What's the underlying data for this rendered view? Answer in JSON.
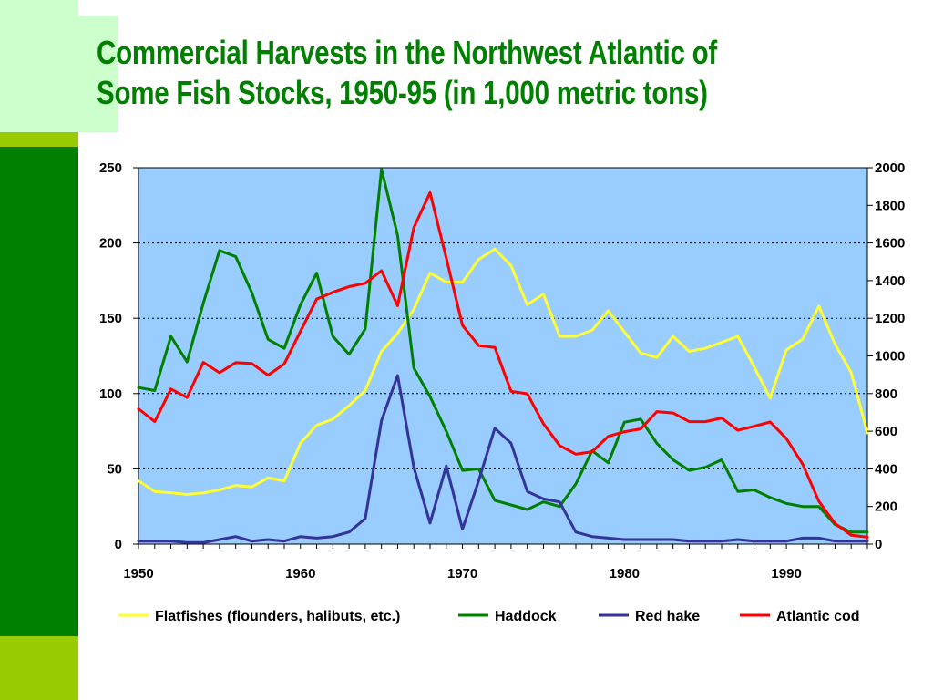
{
  "slide": {
    "title_line1": "Commercial Harvests in the Northwest Atlantic of",
    "title_line2": "Some Fish Stocks, 1950-95 (in 1,000 metric tons)",
    "colors": {
      "light_green": "#ccffcc",
      "lime": "#99cc00",
      "dark_green": "#008000"
    }
  },
  "chart_data": {
    "type": "line",
    "title": "Commercial Harvests in the Northwest Atlantic of Some Fish Stocks, 1950-95 (in 1,000 metric tons)",
    "xlabel": "",
    "ylabel": "",
    "xlim": [
      1950,
      1995
    ],
    "x_ticks": [
      "1950",
      "1960",
      "1970",
      "1980",
      "1990"
    ],
    "y_left": {
      "lim": [
        0,
        250
      ],
      "ticks": [
        "0",
        "50",
        "100",
        "150",
        "200",
        "250"
      ]
    },
    "y_right": {
      "lim": [
        0,
        2000
      ],
      "ticks": [
        "0",
        "200",
        "400",
        "600",
        "800",
        "1000",
        "1200",
        "1400",
        "1600",
        "1800",
        "2000"
      ]
    },
    "grid": "horizontal dotted",
    "plot_background": "#99ccff",
    "legend": "bottom",
    "x": [
      1950,
      1951,
      1952,
      1953,
      1954,
      1955,
      1956,
      1957,
      1958,
      1959,
      1960,
      1961,
      1962,
      1963,
      1964,
      1965,
      1966,
      1967,
      1968,
      1969,
      1970,
      1971,
      1972,
      1973,
      1974,
      1975,
      1976,
      1977,
      1978,
      1979,
      1980,
      1981,
      1982,
      1983,
      1984,
      1985,
      1986,
      1987,
      1988,
      1989,
      1990,
      1991,
      1992,
      1993,
      1994,
      1995
    ],
    "series": [
      {
        "name": "Flatfishes (flounders, halibuts, etc.)",
        "axis": "left",
        "color": "#ffff33",
        "values": [
          42,
          35,
          34,
          33,
          34,
          36,
          39,
          38,
          44,
          42,
          67,
          79,
          83,
          92,
          102,
          128,
          140,
          156,
          180,
          174,
          174,
          189,
          196,
          185,
          159,
          166,
          138,
          138,
          142,
          155,
          141,
          127,
          124,
          138,
          128,
          130,
          134,
          138,
          118,
          97,
          129,
          136,
          158,
          133,
          114,
          74
        ]
      },
      {
        "name": "Haddock",
        "axis": "left",
        "color": "#008000",
        "values": [
          104,
          102,
          138,
          121,
          160,
          195,
          191,
          167,
          136,
          130,
          159,
          180,
          138,
          126,
          143,
          249,
          205,
          117,
          98,
          75,
          49,
          50,
          29,
          26,
          23,
          28,
          25,
          40,
          62,
          54,
          81,
          83,
          67,
          56,
          49,
          51,
          56,
          35,
          36,
          31,
          27,
          25,
          25,
          13,
          8,
          8
        ]
      },
      {
        "name": "Red hake",
        "axis": "left",
        "color": "#333399",
        "values": [
          2,
          2,
          2,
          1,
          1,
          3,
          5,
          2,
          3,
          2,
          5,
          4,
          5,
          8,
          17,
          82,
          112,
          51,
          14,
          52,
          10,
          42,
          77,
          67,
          35,
          30,
          28,
          8,
          5,
          4,
          3,
          3,
          3,
          3,
          2,
          2,
          2,
          3,
          2,
          2,
          2,
          4,
          4,
          2,
          2,
          2
        ]
      },
      {
        "name": "Atlantic cod",
        "axis": "right",
        "color": "#ff0000",
        "values": [
          719,
          651,
          824,
          779,
          966,
          911,
          964,
          960,
          898,
          958,
          1131,
          1302,
          1338,
          1368,
          1386,
          1453,
          1267,
          1682,
          1868,
          1520,
          1162,
          1055,
          1045,
          812,
          799,
          640,
          524,
          478,
          491,
          573,
          597,
          612,
          704,
          697,
          651,
          651,
          670,
          605,
          626,
          649,
          561,
          425,
          228,
          110,
          48,
          37
        ]
      }
    ]
  }
}
